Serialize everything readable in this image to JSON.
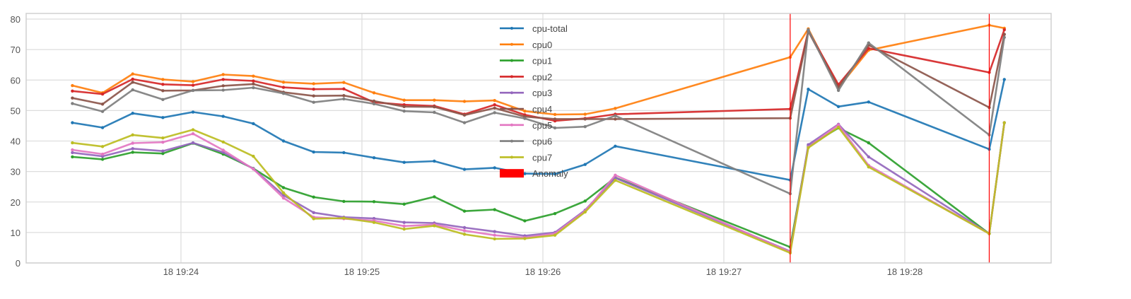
{
  "chart_data": {
    "type": "line",
    "title": "",
    "xlabel": "",
    "ylabel": "",
    "ylim": [
      0,
      80
    ],
    "yticks": [
      0,
      10,
      20,
      30,
      40,
      50,
      60,
      70,
      80
    ],
    "xticks": [
      {
        "label": "18 19:24",
        "sec": 60
      },
      {
        "label": "18 19:25",
        "sec": 120
      },
      {
        "label": "18 19:26",
        "sec": 180
      },
      {
        "label": "18 19:27",
        "sec": 240
      },
      {
        "label": "18 19:28",
        "sec": 300
      }
    ],
    "xlim_sec": [
      -2,
      338
    ],
    "grid": true,
    "legend_position": "upper center",
    "x": [
      "19:23:24",
      "19:23:34",
      "19:23:44",
      "19:23:54",
      "19:24:04",
      "19:24:14",
      "19:24:24",
      "19:24:34",
      "19:24:44",
      "19:24:54",
      "19:25:04",
      "19:25:14",
      "19:25:24",
      "19:25:34",
      "19:25:44",
      "19:25:54",
      "19:26:04",
      "19:26:14",
      "19:26:24",
      "19:27:22",
      "19:27:28",
      "19:27:38",
      "19:27:48",
      "19:28:28",
      "19:28:33"
    ],
    "x_sec": [
      24,
      34,
      44,
      54,
      64,
      74,
      84,
      94,
      104,
      114,
      124,
      134,
      144,
      154,
      164,
      174,
      184,
      194,
      204,
      262,
      268,
      278,
      288,
      328,
      333
    ],
    "series": [
      {
        "name": "cpu-total",
        "color": "#1f77b4",
        "values": [
          46.0,
          44.4,
          49.1,
          47.7,
          49.5,
          48.1,
          45.7,
          40.0,
          36.4,
          36.2,
          34.5,
          33.0,
          33.4,
          30.7,
          31.2,
          29.3,
          29.2,
          32.3,
          38.3,
          27.2,
          57.0,
          51.3,
          52.8,
          37.3,
          60.2
        ]
      },
      {
        "name": "cpu0",
        "color": "#ff7f0e",
        "values": [
          58.2,
          55.8,
          62.0,
          60.2,
          59.5,
          61.8,
          61.3,
          59.3,
          58.8,
          59.2,
          55.8,
          53.4,
          53.4,
          53.0,
          53.3,
          49.8,
          48.7,
          48.8,
          50.7,
          67.5,
          76.8,
          57.5,
          69.8,
          78.0,
          77.0
        ]
      },
      {
        "name": "cpu1",
        "color": "#2ca02c",
        "values": [
          34.8,
          34.0,
          36.3,
          35.9,
          39.3,
          35.7,
          31.0,
          24.7,
          21.6,
          20.2,
          20.1,
          19.3,
          21.7,
          17.0,
          17.5,
          13.8,
          16.2,
          20.3,
          28.0,
          5.2,
          38.3,
          44.3,
          39.4,
          9.6,
          46.0
        ]
      },
      {
        "name": "cpu2",
        "color": "#d62728",
        "values": [
          56.4,
          55.4,
          60.3,
          58.6,
          58.3,
          60.2,
          59.7,
          57.6,
          57.0,
          57.1,
          52.7,
          51.9,
          51.5,
          48.8,
          51.9,
          48.6,
          46.6,
          47.4,
          48.8,
          50.5,
          76.2,
          58.5,
          70.4,
          62.5,
          76.5
        ]
      },
      {
        "name": "cpu3",
        "color": "#9467bd",
        "values": [
          36.2,
          35.0,
          37.5,
          36.7,
          39.4,
          36.3,
          30.9,
          22.2,
          16.5,
          15.0,
          14.6,
          13.3,
          13.1,
          11.6,
          10.3,
          8.9,
          10.0,
          17.3,
          27.9,
          3.8,
          38.8,
          45.5,
          34.8,
          9.6,
          46.0
        ]
      },
      {
        "name": "cpu4",
        "color": "#8c564b",
        "values": [
          54.1,
          52.1,
          59.3,
          56.5,
          56.6,
          58.1,
          58.7,
          56.0,
          54.8,
          54.9,
          53.1,
          51.3,
          51.2,
          48.5,
          50.8,
          48.0,
          47.2,
          47.2,
          47.2,
          47.5,
          76.0,
          57.5,
          71.5,
          51.0,
          75.0
        ]
      },
      {
        "name": "cpu5",
        "color": "#e377c2",
        "values": [
          37.1,
          35.7,
          39.3,
          39.6,
          42.4,
          37.0,
          30.8,
          21.3,
          15.0,
          14.5,
          13.9,
          12.1,
          12.6,
          10.6,
          9.1,
          8.3,
          9.6,
          17.0,
          28.8,
          3.6,
          38.0,
          45.3,
          32.0,
          9.6,
          46.0
        ]
      },
      {
        "name": "cpu6",
        "color": "#7f7f7f",
        "values": [
          52.3,
          49.7,
          56.8,
          53.6,
          56.6,
          56.7,
          57.5,
          55.6,
          52.7,
          53.8,
          52.2,
          49.8,
          49.4,
          46.0,
          49.3,
          47.4,
          44.3,
          44.7,
          48.3,
          22.7,
          76.5,
          56.6,
          72.2,
          42.0,
          74.0
        ]
      },
      {
        "name": "cpu7",
        "color": "#bcbd22",
        "values": [
          39.4,
          38.2,
          42.0,
          41.0,
          43.7,
          39.7,
          35.0,
          23.0,
          14.5,
          14.7,
          13.3,
          11.1,
          12.2,
          9.4,
          7.9,
          8.0,
          9.1,
          16.7,
          27.1,
          3.3,
          37.8,
          44.5,
          31.5,
          9.6,
          46.0
        ]
      }
    ],
    "anomalies": [
      {
        "sec": 262
      },
      {
        "sec": 328
      }
    ],
    "anomaly_color": "#ff0000",
    "legend": [
      "cpu-total",
      "cpu0",
      "cpu1",
      "cpu2",
      "cpu3",
      "cpu4",
      "cpu5",
      "cpu6",
      "cpu7",
      "Anomaly"
    ]
  },
  "legend": {
    "items": [
      {
        "label": "cpu-total",
        "color": "#1f77b4",
        "kind": "line"
      },
      {
        "label": "cpu0",
        "color": "#ff7f0e",
        "kind": "line"
      },
      {
        "label": "cpu1",
        "color": "#2ca02c",
        "kind": "line"
      },
      {
        "label": "cpu2",
        "color": "#d62728",
        "kind": "line"
      },
      {
        "label": "cpu3",
        "color": "#9467bd",
        "kind": "line"
      },
      {
        "label": "cpu4",
        "color": "#8c564b",
        "kind": "line"
      },
      {
        "label": "cpu5",
        "color": "#e377c2",
        "kind": "line"
      },
      {
        "label": "cpu6",
        "color": "#7f7f7f",
        "kind": "line"
      },
      {
        "label": "cpu7",
        "color": "#bcbd22",
        "kind": "line"
      },
      {
        "label": "Anomaly",
        "color": "#ff0000",
        "kind": "patch"
      }
    ]
  },
  "colors": {
    "grid": "#dddddd",
    "frame": "#d0d0d0",
    "tick_text": "#555555",
    "background": "#ffffff"
  }
}
